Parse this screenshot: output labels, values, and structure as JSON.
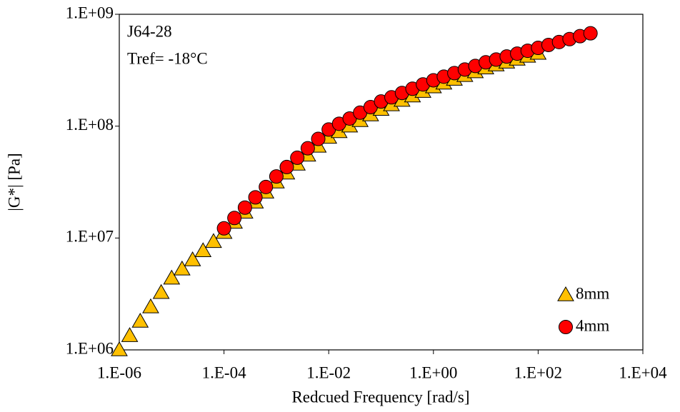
{
  "chart_data": {
    "type": "scatter",
    "xlabel": "Redcued Frequency [rad/s]",
    "ylabel": "|G*| [Pa]",
    "annotations": [
      "J64-28",
      "Tref= -18°C"
    ],
    "xscale": "log",
    "yscale": "log",
    "legend": "lower right",
    "xlim": [
      1e-06,
      10000.0
    ],
    "ylim": [
      1000000.0,
      1000000000.0
    ],
    "xticks": [
      {
        "value": 1e-06,
        "label": "1.E-06"
      },
      {
        "value": 0.0001,
        "label": "1.E-04"
      },
      {
        "value": 0.01,
        "label": "1.E-02"
      },
      {
        "value": 1,
        "label": "1.E+00"
      },
      {
        "value": 100,
        "label": "1.E+02"
      },
      {
        "value": 10000.0,
        "label": "1.E+04"
      }
    ],
    "yticks": [
      {
        "value": 1000000.0,
        "label": "1.E+06"
      },
      {
        "value": 10000000.0,
        "label": "1.E+07"
      },
      {
        "value": 100000000.0,
        "label": "1.E+08"
      },
      {
        "value": 1000000000.0,
        "label": "1.E+09"
      }
    ],
    "series": [
      {
        "name": "8mm",
        "marker": "triangle",
        "color": "#ffc000",
        "x": [
          1e-06,
          1.58e-06,
          2.51e-06,
          3.98e-06,
          6.31e-06,
          1e-05,
          1.58e-05,
          2.51e-05,
          3.98e-05,
          6.31e-05,
          0.0001,
          0.000158,
          0.000251,
          0.000398,
          0.000631,
          0.001,
          0.00158,
          0.00251,
          0.00398,
          0.00631,
          0.01,
          0.0158,
          0.0251,
          0.0398,
          0.0631,
          0.1,
          0.158,
          0.251,
          0.398,
          0.631,
          1,
          1.58,
          2.51,
          3.98,
          6.31,
          10,
          15.8,
          25.1,
          39.8,
          63.1,
          100
        ],
        "values": [
          1000000.0,
          1340000.0,
          1800000.0,
          2420000.0,
          3250000.0,
          4370000.0,
          5270000.0,
          6370000.0,
          7690000.0,
          9290000.0,
          11200000.0,
          13800000.0,
          17000000.0,
          20900000.0,
          25700000.0,
          31600000.0,
          38000000.0,
          45700000.0,
          55000000.0,
          66100000.0,
          79400000.0,
          89100000.0,
          100000000.0,
          112000000.0,
          126000000.0,
          141000000.0,
          155000000.0,
          170000000.0,
          186000000.0,
          204000000.0,
          224000000.0,
          242000000.0,
          262000000.0,
          283000000.0,
          306000000.0,
          331000000.0,
          352000000.0,
          373000000.0,
          396000000.0,
          421000000.0,
          447000000.0
        ]
      },
      {
        "name": "4mm",
        "marker": "circle",
        "color": "#ff0000",
        "x": [
          0.0001,
          0.000158,
          0.000251,
          0.000398,
          0.000631,
          0.001,
          0.00158,
          0.00251,
          0.00398,
          0.00631,
          0.01,
          0.0158,
          0.0251,
          0.0398,
          0.0631,
          0.1,
          0.158,
          0.251,
          0.398,
          0.631,
          1,
          1.58,
          2.51,
          3.98,
          6.31,
          10,
          15.8,
          25.1,
          39.8,
          63.1,
          100,
          158,
          251,
          398,
          631,
          1000
        ],
        "values": [
          12200000.0,
          15100000.0,
          18700000.0,
          23100000.0,
          28600000.0,
          35500000.0,
          43100000.0,
          52200000.0,
          63400000.0,
          76900000.0,
          93300000.0,
          105000000.0,
          117000000.0,
          132000000.0,
          148000000.0,
          166000000.0,
          181000000.0,
          198000000.0,
          216000000.0,
          236000000.0,
          257000000.0,
          277000000.0,
          298000000.0,
          321000000.0,
          345000000.0,
          372000000.0,
          394000000.0,
          419000000.0,
          445000000.0,
          472000000.0,
          501000000.0,
          532000000.0,
          565000000.0,
          600000000.0,
          637000000.0,
          676000000.0
        ]
      }
    ]
  }
}
